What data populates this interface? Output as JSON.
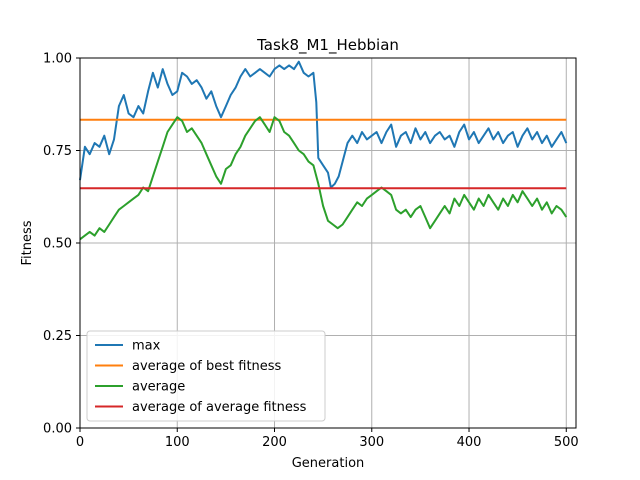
{
  "chart_data": {
    "type": "line",
    "title": "Task8_M1_Hebbian",
    "xlabel": "Generation",
    "ylabel": "Fitness",
    "xlim": [
      0,
      510
    ],
    "ylim": [
      0,
      1
    ],
    "xticks": [
      0,
      100,
      200,
      300,
      400,
      500
    ],
    "xtick_labels": [
      "0",
      "100",
      "200",
      "300",
      "400",
      "500"
    ],
    "yticks": [
      0,
      0.25,
      0.5,
      0.75,
      1.0
    ],
    "ytick_labels": [
      "0.00",
      "0.25",
      "0.50",
      "0.75",
      "1.00"
    ],
    "grid": true,
    "legend_position": "lower-left",
    "series": [
      {
        "name": "max",
        "color": "#1f77b4",
        "kind": "line",
        "points": [
          [
            0,
            0.67
          ],
          [
            5,
            0.76
          ],
          [
            10,
            0.74
          ],
          [
            15,
            0.77
          ],
          [
            20,
            0.76
          ],
          [
            25,
            0.79
          ],
          [
            30,
            0.74
          ],
          [
            35,
            0.78
          ],
          [
            40,
            0.87
          ],
          [
            45,
            0.9
          ],
          [
            50,
            0.85
          ],
          [
            55,
            0.84
          ],
          [
            60,
            0.87
          ],
          [
            65,
            0.85
          ],
          [
            70,
            0.91
          ],
          [
            75,
            0.96
          ],
          [
            80,
            0.92
          ],
          [
            85,
            0.97
          ],
          [
            90,
            0.93
          ],
          [
            95,
            0.9
          ],
          [
            100,
            0.91
          ],
          [
            105,
            0.96
          ],
          [
            110,
            0.95
          ],
          [
            115,
            0.93
          ],
          [
            120,
            0.94
          ],
          [
            125,
            0.92
          ],
          [
            130,
            0.89
          ],
          [
            135,
            0.91
          ],
          [
            140,
            0.87
          ],
          [
            145,
            0.84
          ],
          [
            150,
            0.87
          ],
          [
            155,
            0.9
          ],
          [
            160,
            0.92
          ],
          [
            165,
            0.95
          ],
          [
            170,
            0.97
          ],
          [
            175,
            0.95
          ],
          [
            180,
            0.96
          ],
          [
            185,
            0.97
          ],
          [
            190,
            0.96
          ],
          [
            195,
            0.95
          ],
          [
            200,
            0.97
          ],
          [
            205,
            0.98
          ],
          [
            210,
            0.97
          ],
          [
            215,
            0.98
          ],
          [
            220,
            0.97
          ],
          [
            225,
            0.99
          ],
          [
            230,
            0.96
          ],
          [
            235,
            0.95
          ],
          [
            240,
            0.96
          ],
          [
            243,
            0.88
          ],
          [
            245,
            0.73
          ],
          [
            250,
            0.71
          ],
          [
            255,
            0.69
          ],
          [
            258,
            0.65
          ],
          [
            262,
            0.66
          ],
          [
            266,
            0.68
          ],
          [
            270,
            0.72
          ],
          [
            275,
            0.77
          ],
          [
            280,
            0.79
          ],
          [
            285,
            0.77
          ],
          [
            290,
            0.8
          ],
          [
            295,
            0.78
          ],
          [
            300,
            0.79
          ],
          [
            305,
            0.8
          ],
          [
            310,
            0.77
          ],
          [
            315,
            0.8
          ],
          [
            320,
            0.82
          ],
          [
            325,
            0.76
          ],
          [
            330,
            0.79
          ],
          [
            335,
            0.8
          ],
          [
            340,
            0.77
          ],
          [
            345,
            0.81
          ],
          [
            350,
            0.78
          ],
          [
            355,
            0.8
          ],
          [
            360,
            0.77
          ],
          [
            365,
            0.79
          ],
          [
            370,
            0.8
          ],
          [
            375,
            0.78
          ],
          [
            380,
            0.79
          ],
          [
            385,
            0.76
          ],
          [
            390,
            0.8
          ],
          [
            395,
            0.82
          ],
          [
            400,
            0.78
          ],
          [
            405,
            0.8
          ],
          [
            410,
            0.77
          ],
          [
            415,
            0.79
          ],
          [
            420,
            0.81
          ],
          [
            425,
            0.78
          ],
          [
            430,
            0.8
          ],
          [
            435,
            0.77
          ],
          [
            440,
            0.79
          ],
          [
            445,
            0.8
          ],
          [
            450,
            0.76
          ],
          [
            455,
            0.79
          ],
          [
            460,
            0.81
          ],
          [
            465,
            0.78
          ],
          [
            470,
            0.8
          ],
          [
            475,
            0.77
          ],
          [
            480,
            0.79
          ],
          [
            485,
            0.76
          ],
          [
            490,
            0.78
          ],
          [
            495,
            0.8
          ],
          [
            500,
            0.77
          ]
        ]
      },
      {
        "name": "average of best fitness",
        "color": "#ff7f0e",
        "kind": "hline",
        "y": 0.833,
        "x_range": [
          0,
          500
        ]
      },
      {
        "name": "average",
        "color": "#2ca02c",
        "kind": "line",
        "points": [
          [
            0,
            0.51
          ],
          [
            5,
            0.52
          ],
          [
            10,
            0.53
          ],
          [
            15,
            0.52
          ],
          [
            20,
            0.54
          ],
          [
            25,
            0.53
          ],
          [
            30,
            0.55
          ],
          [
            35,
            0.57
          ],
          [
            40,
            0.59
          ],
          [
            45,
            0.6
          ],
          [
            50,
            0.61
          ],
          [
            55,
            0.62
          ],
          [
            60,
            0.63
          ],
          [
            65,
            0.65
          ],
          [
            70,
            0.64
          ],
          [
            75,
            0.68
          ],
          [
            80,
            0.72
          ],
          [
            85,
            0.76
          ],
          [
            90,
            0.8
          ],
          [
            95,
            0.82
          ],
          [
            100,
            0.84
          ],
          [
            105,
            0.83
          ],
          [
            110,
            0.8
          ],
          [
            115,
            0.81
          ],
          [
            120,
            0.79
          ],
          [
            125,
            0.77
          ],
          [
            130,
            0.74
          ],
          [
            135,
            0.71
          ],
          [
            140,
            0.68
          ],
          [
            145,
            0.66
          ],
          [
            150,
            0.7
          ],
          [
            155,
            0.71
          ],
          [
            160,
            0.74
          ],
          [
            165,
            0.76
          ],
          [
            170,
            0.79
          ],
          [
            175,
            0.81
          ],
          [
            180,
            0.83
          ],
          [
            185,
            0.84
          ],
          [
            190,
            0.82
          ],
          [
            195,
            0.8
          ],
          [
            200,
            0.84
          ],
          [
            205,
            0.83
          ],
          [
            210,
            0.8
          ],
          [
            215,
            0.79
          ],
          [
            220,
            0.77
          ],
          [
            225,
            0.75
          ],
          [
            230,
            0.74
          ],
          [
            235,
            0.72
          ],
          [
            240,
            0.71
          ],
          [
            245,
            0.66
          ],
          [
            250,
            0.6
          ],
          [
            255,
            0.56
          ],
          [
            260,
            0.55
          ],
          [
            265,
            0.54
          ],
          [
            270,
            0.55
          ],
          [
            275,
            0.57
          ],
          [
            280,
            0.59
          ],
          [
            285,
            0.61
          ],
          [
            290,
            0.6
          ],
          [
            295,
            0.62
          ],
          [
            300,
            0.63
          ],
          [
            305,
            0.64
          ],
          [
            310,
            0.65
          ],
          [
            315,
            0.64
          ],
          [
            320,
            0.63
          ],
          [
            325,
            0.59
          ],
          [
            330,
            0.58
          ],
          [
            335,
            0.59
          ],
          [
            340,
            0.57
          ],
          [
            345,
            0.59
          ],
          [
            350,
            0.6
          ],
          [
            355,
            0.57
          ],
          [
            360,
            0.54
          ],
          [
            365,
            0.56
          ],
          [
            370,
            0.58
          ],
          [
            375,
            0.6
          ],
          [
            380,
            0.58
          ],
          [
            385,
            0.62
          ],
          [
            390,
            0.6
          ],
          [
            395,
            0.63
          ],
          [
            400,
            0.61
          ],
          [
            405,
            0.59
          ],
          [
            410,
            0.62
          ],
          [
            415,
            0.6
          ],
          [
            420,
            0.63
          ],
          [
            425,
            0.61
          ],
          [
            430,
            0.59
          ],
          [
            435,
            0.62
          ],
          [
            440,
            0.6
          ],
          [
            445,
            0.63
          ],
          [
            450,
            0.61
          ],
          [
            455,
            0.64
          ],
          [
            460,
            0.62
          ],
          [
            465,
            0.6
          ],
          [
            470,
            0.62
          ],
          [
            475,
            0.59
          ],
          [
            480,
            0.61
          ],
          [
            485,
            0.58
          ],
          [
            490,
            0.6
          ],
          [
            495,
            0.59
          ],
          [
            500,
            0.57
          ]
        ]
      },
      {
        "name": "average of average fitness",
        "color": "#d62728",
        "kind": "hline",
        "y": 0.648,
        "x_range": [
          0,
          500
        ]
      }
    ]
  }
}
